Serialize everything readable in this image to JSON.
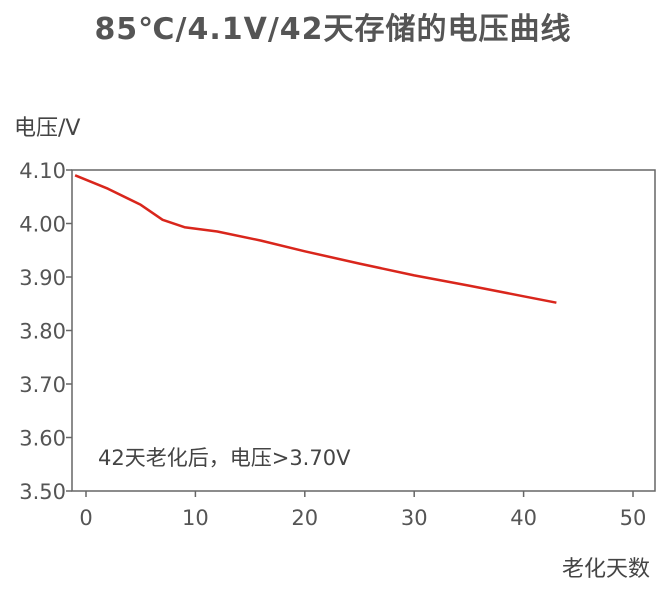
{
  "chart_data": {
    "type": "line",
    "title": "85℃/4.1V/42天存储的电压曲线",
    "ylabel": "电压/V",
    "xlabel": "老化天数",
    "xlim": [
      0,
      50
    ],
    "ylim": [
      3.5,
      4.1
    ],
    "x_ticks": [
      "0",
      "10",
      "20",
      "30",
      "40",
      "50"
    ],
    "y_ticks": [
      "4.10",
      "4.00",
      "3.90",
      "3.80",
      "3.70",
      "3.60",
      "3.50"
    ],
    "grid": false,
    "series": [
      {
        "color": "#d9261c",
        "x": [
          -1,
          2,
          5,
          7,
          9,
          12,
          16,
          20,
          25,
          30,
          35,
          40,
          43
        ],
        "y": [
          4.09,
          4.065,
          4.035,
          4.007,
          3.993,
          3.985,
          3.968,
          3.948,
          3.925,
          3.903,
          3.884,
          3.864,
          3.852
        ]
      }
    ],
    "annotation": "42天老化后，电压>3.70V"
  }
}
